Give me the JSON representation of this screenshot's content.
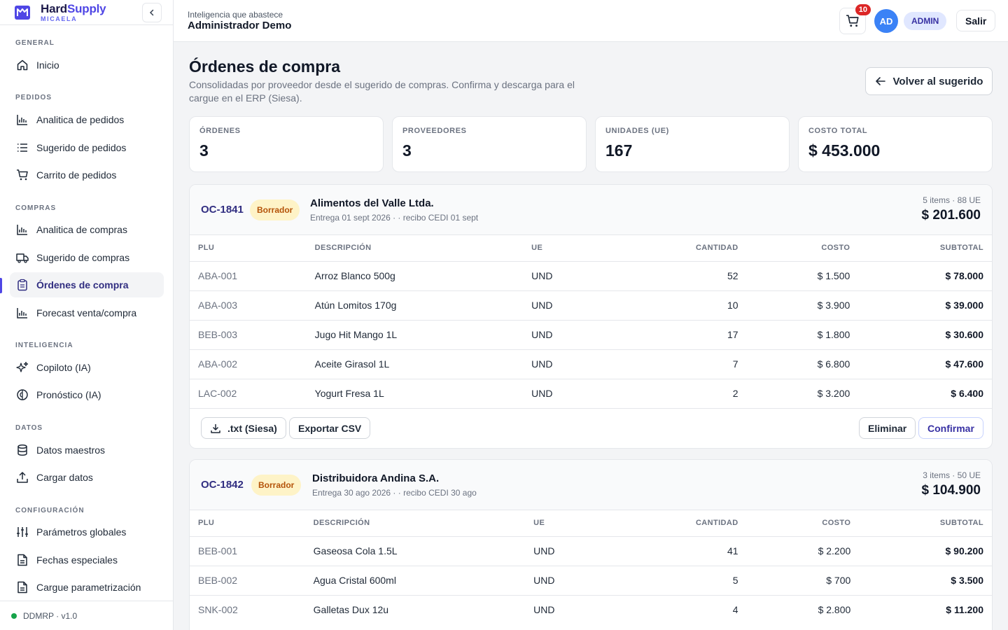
{
  "brand": {
    "name_a": "Hard",
    "name_b": "Supply",
    "subtitle": "MICAELA",
    "accent": "#4f46e5"
  },
  "sidebar": {
    "sections": [
      {
        "title": "GENERAL",
        "items": [
          {
            "label": "Inicio",
            "icon": "home-icon"
          }
        ]
      },
      {
        "title": "PEDIDOS",
        "items": [
          {
            "label": "Analitica de pedidos",
            "icon": "bar-chart-icon"
          },
          {
            "label": "Sugerido de pedidos",
            "icon": "list-icon"
          },
          {
            "label": "Carrito de pedidos",
            "icon": "cart-icon"
          }
        ]
      },
      {
        "title": "COMPRAS",
        "items": [
          {
            "label": "Analitica de compras",
            "icon": "bar-chart-icon"
          },
          {
            "label": "Sugerido de compras",
            "icon": "truck-icon"
          },
          {
            "label": "Órdenes de compra",
            "icon": "clipboard-icon",
            "active": true
          },
          {
            "label": "Forecast venta/compra",
            "icon": "bar-chart-icon"
          }
        ]
      },
      {
        "title": "INTELIGENCIA",
        "items": [
          {
            "label": "Copiloto (IA)",
            "icon": "sparkles-icon"
          },
          {
            "label": "Pronóstico (IA)",
            "icon": "brain-icon"
          }
        ]
      },
      {
        "title": "DATOS",
        "items": [
          {
            "label": "Datos maestros",
            "icon": "database-icon"
          },
          {
            "label": "Cargar datos",
            "icon": "upload-icon"
          }
        ]
      },
      {
        "title": "CONFIGURACIÓN",
        "items": [
          {
            "label": "Parámetros globales",
            "icon": "sliders-icon"
          },
          {
            "label": "Fechas especiales",
            "icon": "file-icon"
          },
          {
            "label": "Cargue parametrización",
            "icon": "file-icon"
          }
        ]
      }
    ],
    "footer": "DDMRP · v1.0"
  },
  "header": {
    "tagline": "Inteligencia que abastece",
    "user": "Administrador Demo",
    "cart_count": "10",
    "avatar": "AD",
    "role": "ADMIN",
    "logout": "Salir"
  },
  "page": {
    "title": "Órdenes de compra",
    "description": "Consolidadas por proveedor desde el sugerido de compras. Confirma y descarga para el cargue en el ERP (Siesa).",
    "back_label": "Volver al sugerido"
  },
  "stats": [
    {
      "label": "ÓRDENES",
      "value": "3"
    },
    {
      "label": "PROVEEDORES",
      "value": "3"
    },
    {
      "label": "UNIDADES (UE)",
      "value": "167"
    },
    {
      "label": "COSTO TOTAL",
      "value": "$ 453.000"
    }
  ],
  "table_headers": [
    "PLU",
    "DESCRIPCIÓN",
    "UE",
    "CANTIDAD",
    "COSTO",
    "SUBTOTAL"
  ],
  "actions": {
    "txt": ".txt (Siesa)",
    "csv": "Exportar CSV",
    "delete": "Eliminar",
    "confirm": "Confirmar"
  },
  "orders": [
    {
      "id": "OC-1841",
      "status": "Borrador",
      "supplier": "Alimentos del Valle Ltda.",
      "delivery": "Entrega 01 sept 2026 · · recibo CEDI 01 sept",
      "summary": "5 items · 88 UE",
      "total": "$ 201.600",
      "rows": [
        [
          "ABA-001",
          "Arroz Blanco 500g",
          "UND",
          "52",
          "$ 1.500",
          "$ 78.000"
        ],
        [
          "ABA-003",
          "Atún Lomitos 170g",
          "UND",
          "10",
          "$ 3.900",
          "$ 39.000"
        ],
        [
          "BEB-003",
          "Jugo Hit Mango 1L",
          "UND",
          "17",
          "$ 1.800",
          "$ 30.600"
        ],
        [
          "ABA-002",
          "Aceite Girasol 1L",
          "UND",
          "7",
          "$ 6.800",
          "$ 47.600"
        ],
        [
          "LAC-002",
          "Yogurt Fresa 1L",
          "UND",
          "2",
          "$ 3.200",
          "$ 6.400"
        ]
      ]
    },
    {
      "id": "OC-1842",
      "status": "Borrador",
      "supplier": "Distribuidora Andina S.A.",
      "delivery": "Entrega 30 ago 2026 · · recibo CEDI 30 ago",
      "summary": "3 items · 50 UE",
      "total": "$ 104.900",
      "rows": [
        [
          "BEB-001",
          "Gaseosa Cola 1.5L",
          "UND",
          "41",
          "$ 2.200",
          "$ 90.200"
        ],
        [
          "BEB-002",
          "Agua Cristal 600ml",
          "UND",
          "5",
          "$ 700",
          "$ 3.500"
        ],
        [
          "SNK-002",
          "Galletas Dux 12u",
          "UND",
          "4",
          "$ 2.800",
          "$ 11.200"
        ]
      ]
    }
  ]
}
